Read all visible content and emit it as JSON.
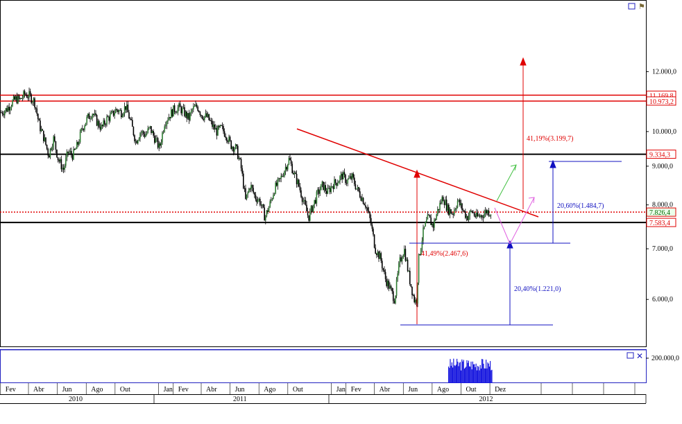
{
  "chart_data": {
    "type": "candlestick",
    "price_axis": {
      "ticks": [
        12000,
        11000,
        10000,
        9000,
        8000,
        7000,
        6000
      ],
      "tick_labels": [
        "12.000,0",
        "11.000,0",
        "10.000,0",
        "9.000,0",
        "8.000,0",
        "7.000,0",
        "6.000,0"
      ]
    },
    "volume_axis": {
      "tick_label": "200.000,0"
    },
    "x_axis": {
      "months": [
        "Fev",
        "Abr",
        "Jun",
        "Ago",
        "Out",
        "Jan",
        "Fev",
        "Abr",
        "Jun",
        "Ago",
        "Out",
        "Jan",
        "Fev",
        "Abr",
        "Jun",
        "Ago",
        "Out",
        "Dez"
      ],
      "years": [
        "2010",
        "2011",
        "2012"
      ]
    },
    "levels": [
      {
        "value": 11169.8,
        "label": "11.169,8",
        "color": "#e00000",
        "style": "solid"
      },
      {
        "value": 10973.2,
        "label": "10.973,2",
        "color": "#e00000",
        "style": "solid"
      },
      {
        "value": 9334.3,
        "label": "9.334,3",
        "color": "#000000",
        "style": "solid"
      },
      {
        "value": 7826.4,
        "label": "7.826,4",
        "color": "#e00000",
        "style": "dotted"
      },
      {
        "value": 7583.4,
        "label": "7.583,4",
        "color": "#000000",
        "style": "solid"
      }
    ],
    "annotations": [
      {
        "text": "41,19%(3.199,7)",
        "color": "#e00000"
      },
      {
        "text": "41,49%(2.467,6)",
        "color": "#e00000"
      },
      {
        "text": "20,60%(1.484,7)",
        "color": "#1010c0"
      },
      {
        "text": "20,40%(1.221,0)",
        "color": "#1010c0"
      }
    ],
    "price_path": [
      [
        "2010-01-25",
        10600
      ],
      [
        "2010-02-05",
        10700
      ],
      [
        "2010-02-15",
        10900
      ],
      [
        "2010-02-25",
        11050
      ],
      [
        "2010-03-05",
        11000
      ],
      [
        "2010-03-15",
        11200
      ],
      [
        "2010-03-25",
        11150
      ],
      [
        "2010-04-05",
        10950
      ],
      [
        "2010-04-15",
        10200
      ],
      [
        "2010-04-25",
        9800
      ],
      [
        "2010-05-05",
        9300
      ],
      [
        "2010-05-15",
        9800
      ],
      [
        "2010-05-25",
        9200
      ],
      [
        "2010-06-05",
        8900
      ],
      [
        "2010-06-15",
        9400
      ],
      [
        "2010-06-25",
        9300
      ],
      [
        "2010-07-05",
        9600
      ],
      [
        "2010-07-15",
        10100
      ],
      [
        "2010-07-25",
        10400
      ],
      [
        "2010-08-05",
        10600
      ],
      [
        "2010-08-15",
        10300
      ],
      [
        "2010-08-25",
        10100
      ],
      [
        "2010-09-05",
        10400
      ],
      [
        "2010-09-15",
        10500
      ],
      [
        "2010-09-25",
        10700
      ],
      [
        "2010-10-05",
        10600
      ],
      [
        "2010-10-15",
        10800
      ],
      [
        "2010-10-25",
        10300
      ],
      [
        "2010-11-05",
        9700
      ],
      [
        "2010-11-15",
        10000
      ],
      [
        "2010-11-25",
        9900
      ],
      [
        "2010-12-05",
        10100
      ],
      [
        "2010-12-15",
        9800
      ],
      [
        "2010-12-25",
        9500
      ],
      [
        "2011-01-05",
        10300
      ],
      [
        "2011-01-15",
        10500
      ],
      [
        "2011-01-25",
        10700
      ],
      [
        "2011-02-05",
        10750
      ],
      [
        "2011-02-15",
        10600
      ],
      [
        "2011-02-25",
        10400
      ],
      [
        "2011-03-05",
        10700
      ],
      [
        "2011-03-15",
        10800
      ],
      [
        "2011-03-25",
        10500
      ],
      [
        "2011-04-05",
        10450
      ],
      [
        "2011-04-15",
        10200
      ],
      [
        "2011-04-25",
        10000
      ],
      [
        "2011-05-05",
        10100
      ],
      [
        "2011-05-15",
        9900
      ],
      [
        "2011-05-25",
        9600
      ],
      [
        "2011-06-05",
        9500
      ],
      [
        "2011-06-15",
        9000
      ],
      [
        "2011-06-25",
        8100
      ],
      [
        "2011-07-05",
        8500
      ],
      [
        "2011-07-15",
        8200
      ],
      [
        "2011-07-25",
        8100
      ],
      [
        "2011-08-05",
        7700
      ],
      [
        "2011-08-15",
        8000
      ],
      [
        "2011-08-25",
        8400
      ],
      [
        "2011-09-05",
        8600
      ],
      [
        "2011-09-15",
        8900
      ],
      [
        "2011-09-25",
        9200
      ],
      [
        "2011-10-05",
        8800
      ],
      [
        "2011-10-15",
        8500
      ],
      [
        "2011-10-25",
        8100
      ],
      [
        "2011-11-05",
        7700
      ],
      [
        "2011-11-15",
        8000
      ],
      [
        "2011-11-25",
        8300
      ],
      [
        "2011-12-05",
        8500
      ],
      [
        "2011-12-15",
        8300
      ],
      [
        "2011-12-25",
        8500
      ],
      [
        "2012-01-05",
        8600
      ],
      [
        "2012-01-15",
        8750
      ],
      [
        "2012-01-25",
        8600
      ],
      [
        "2012-02-05",
        8700
      ],
      [
        "2012-02-15",
        8400
      ],
      [
        "2012-02-25",
        8200
      ],
      [
        "2012-03-05",
        8000
      ],
      [
        "2012-03-15",
        7600
      ],
      [
        "2012-03-25",
        7000
      ],
      [
        "2012-04-05",
        6800
      ],
      [
        "2012-04-15",
        6400
      ],
      [
        "2012-04-25",
        6200
      ],
      [
        "2012-05-05",
        6000
      ],
      [
        "2012-05-15",
        6700
      ],
      [
        "2012-05-25",
        7000
      ],
      [
        "2012-06-05",
        6400
      ],
      [
        "2012-06-15",
        6000
      ],
      [
        "2012-06-20",
        5950
      ],
      [
        "2012-06-25",
        6800
      ],
      [
        "2012-07-05",
        7400
      ],
      [
        "2012-07-15",
        7700
      ],
      [
        "2012-07-25",
        7500
      ],
      [
        "2012-08-05",
        7900
      ],
      [
        "2012-08-15",
        8200
      ],
      [
        "2012-08-25",
        7900
      ],
      [
        "2012-09-05",
        7800
      ],
      [
        "2012-09-15",
        8100
      ],
      [
        "2012-09-25",
        7900
      ],
      [
        "2012-10-05",
        7700
      ],
      [
        "2012-10-15",
        7850
      ],
      [
        "2012-10-25",
        7700
      ],
      [
        "2012-11-05",
        7750
      ],
      [
        "2012-11-15",
        7850
      ],
      [
        "2012-11-25",
        7826
      ]
    ]
  }
}
